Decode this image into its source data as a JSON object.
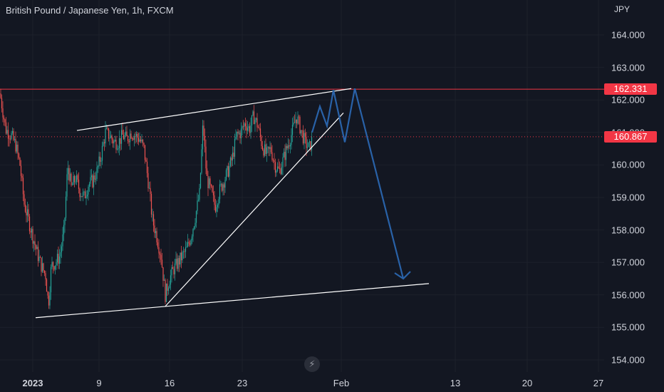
{
  "header": {
    "title": "British Pound / Japanese Yen, 1h, FXCM",
    "currency": "JPY"
  },
  "colors": {
    "background": "#131722",
    "bull": "#26a69a",
    "bear": "#ef5350",
    "resistance_line": "#f23645",
    "trendline": "#ffffff",
    "projection": "#2962a8",
    "text": "#d1d4dc"
  },
  "icons": {
    "logo": "lightning-bolt-icon"
  },
  "chart_data": {
    "type": "candlestick",
    "title": "British Pound / Japanese Yen, 1h, FXCM",
    "ylabel": "JPY",
    "ylim": [
      153.8,
      165.1
    ],
    "y_ticks": [
      "164.000",
      "163.000",
      "162.000",
      "161.000",
      "160.000",
      "159.000",
      "158.000",
      "157.000",
      "156.000",
      "155.000",
      "154.000"
    ],
    "x_ticks": [
      "2023",
      "9",
      "16",
      "23",
      "Feb",
      "13",
      "20",
      "27"
    ],
    "price_labels": [
      {
        "value": "162.331",
        "color": "#f23645"
      },
      {
        "value": "160.867",
        "color": "#f23645"
      }
    ],
    "horizontal_lines": [
      {
        "value": 162.331,
        "style": "solid",
        "color": "#f23645"
      },
      {
        "value": 160.867,
        "style": "dotted",
        "color": "#f23645"
      }
    ],
    "price_path": [
      [
        0,
        162.2
      ],
      [
        8,
        161.1
      ],
      [
        16,
        160.9
      ],
      [
        22,
        160.6
      ],
      [
        28,
        160.0
      ],
      [
        34,
        158.8
      ],
      [
        40,
        158.3
      ],
      [
        46,
        157.8
      ],
      [
        52,
        157.3
      ],
      [
        58,
        156.9
      ],
      [
        64,
        156.6
      ],
      [
        68,
        155.7
      ],
      [
        72,
        156.9
      ],
      [
        78,
        157.0
      ],
      [
        84,
        157.2
      ],
      [
        90,
        158.0
      ],
      [
        95,
        160.0
      ],
      [
        100,
        159.3
      ],
      [
        106,
        159.6
      ],
      [
        112,
        159.2
      ],
      [
        118,
        159.0
      ],
      [
        124,
        159.4
      ],
      [
        130,
        159.5
      ],
      [
        136,
        159.8
      ],
      [
        142,
        160.3
      ],
      [
        148,
        161.0
      ],
      [
        154,
        160.9
      ],
      [
        160,
        160.7
      ],
      [
        166,
        160.7
      ],
      [
        172,
        160.9
      ],
      [
        178,
        160.8
      ],
      [
        184,
        161.0
      ],
      [
        190,
        160.9
      ],
      [
        196,
        160.8
      ],
      [
        202,
        160.5
      ],
      [
        208,
        159.5
      ],
      [
        214,
        158.3
      ],
      [
        220,
        157.8
      ],
      [
        226,
        157.2
      ],
      [
        232,
        156.0
      ],
      [
        238,
        156.5
      ],
      [
        244,
        156.8
      ],
      [
        250,
        157.0
      ],
      [
        256,
        157.2
      ],
      [
        262,
        157.4
      ],
      [
        268,
        157.8
      ],
      [
        274,
        158.4
      ],
      [
        280,
        159.1
      ],
      [
        285,
        161.3
      ],
      [
        290,
        159.6
      ],
      [
        296,
        159.2
      ],
      [
        302,
        158.7
      ],
      [
        308,
        159.2
      ],
      [
        314,
        159.5
      ],
      [
        320,
        159.8
      ],
      [
        326,
        160.2
      ],
      [
        332,
        160.9
      ],
      [
        338,
        161.0
      ],
      [
        344,
        161.3
      ],
      [
        350,
        161.1
      ],
      [
        356,
        161.5
      ],
      [
        362,
        161.2
      ],
      [
        368,
        160.6
      ],
      [
        374,
        160.3
      ],
      [
        380,
        160.5
      ],
      [
        386,
        160.0
      ],
      [
        392,
        159.8
      ],
      [
        398,
        160.2
      ],
      [
        404,
        160.6
      ],
      [
        410,
        161.0
      ],
      [
        416,
        161.5
      ],
      [
        422,
        161.1
      ],
      [
        428,
        160.7
      ],
      [
        434,
        160.5
      ],
      [
        440,
        160.9
      ]
    ],
    "drawn_lines": [
      {
        "name": "upper-channel",
        "points": [
          [
            108,
            161.06
          ],
          [
            493,
            162.35
          ]
        ]
      },
      {
        "name": "lower-channel",
        "points": [
          [
            50,
            155.3
          ],
          [
            602,
            156.35
          ]
        ]
      },
      {
        "name": "rising-support",
        "points": [
          [
            232,
            155.65
          ],
          [
            482,
            161.6
          ]
        ]
      }
    ],
    "projection_path": [
      [
        438,
        161.0
      ],
      [
        449,
        161.8
      ],
      [
        459,
        161.2
      ],
      [
        468,
        162.3
      ],
      [
        484,
        160.7
      ],
      [
        498,
        162.35
      ],
      [
        566,
        156.5
      ]
    ]
  }
}
